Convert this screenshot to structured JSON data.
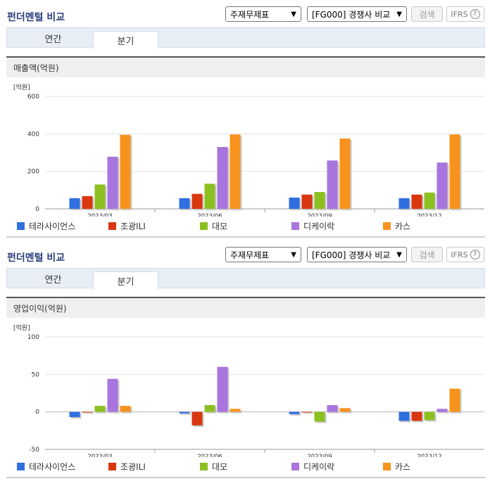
{
  "header": {
    "title": "펀더멘털 비교",
    "select_statement": "주재무제표",
    "select_group": "[FG000] 경쟁사 비교",
    "search_label": "검색",
    "ifrs_label": "IFRS",
    "help_glyph": "?"
  },
  "tabs": [
    {
      "label": "연간"
    },
    {
      "label": "분기"
    }
  ],
  "series_colors": [
    "#2f6fe0",
    "#d8370f",
    "#8cc021",
    "#a874dd",
    "#f7931d"
  ],
  "chart_data": [
    {
      "type": "bar",
      "section_label": "매출액(억원)",
      "unit_label": "[억원]",
      "categories": [
        "2023/03",
        "2023/06",
        "2023/09",
        "2023/12"
      ],
      "ylim": [
        0,
        600
      ],
      "yticks": [
        "600",
        "400",
        "200",
        "0"
      ],
      "ytick_values": [
        600,
        400,
        200,
        0
      ],
      "grid": true,
      "legend_position": "bottom",
      "series": [
        {
          "name": "테라사이언스",
          "values": [
            57,
            57,
            60,
            57
          ]
        },
        {
          "name": "조광ILI",
          "values": [
            68,
            80,
            76,
            76
          ]
        },
        {
          "name": "대모",
          "values": [
            130,
            134,
            90,
            87
          ]
        },
        {
          "name": "디케이락",
          "values": [
            278,
            330,
            258,
            247
          ]
        },
        {
          "name": "카스",
          "values": [
            395,
            397,
            375,
            397
          ]
        }
      ]
    },
    {
      "type": "bar",
      "section_label": "영업이익(억원)",
      "unit_label": "[억원]",
      "categories": [
        "2023/03",
        "2023/06",
        "2023/09",
        "2023/12"
      ],
      "ylim": [
        -50,
        100
      ],
      "yticks": [
        "100",
        "50",
        "0",
        "-50"
      ],
      "ytick_values": [
        100,
        50,
        0,
        -50
      ],
      "grid": true,
      "legend_position": "bottom",
      "series": [
        {
          "name": "테라사이언스",
          "values": [
            -7,
            -2,
            -3,
            -12
          ]
        },
        {
          "name": "조광ILI",
          "values": [
            -1,
            -18,
            -1,
            -12
          ]
        },
        {
          "name": "대모",
          "values": [
            8,
            9,
            -13,
            -11
          ]
        },
        {
          "name": "디케이락",
          "values": [
            44,
            60,
            9,
            4
          ]
        },
        {
          "name": "카스",
          "values": [
            8,
            4,
            5,
            31
          ]
        }
      ]
    }
  ]
}
